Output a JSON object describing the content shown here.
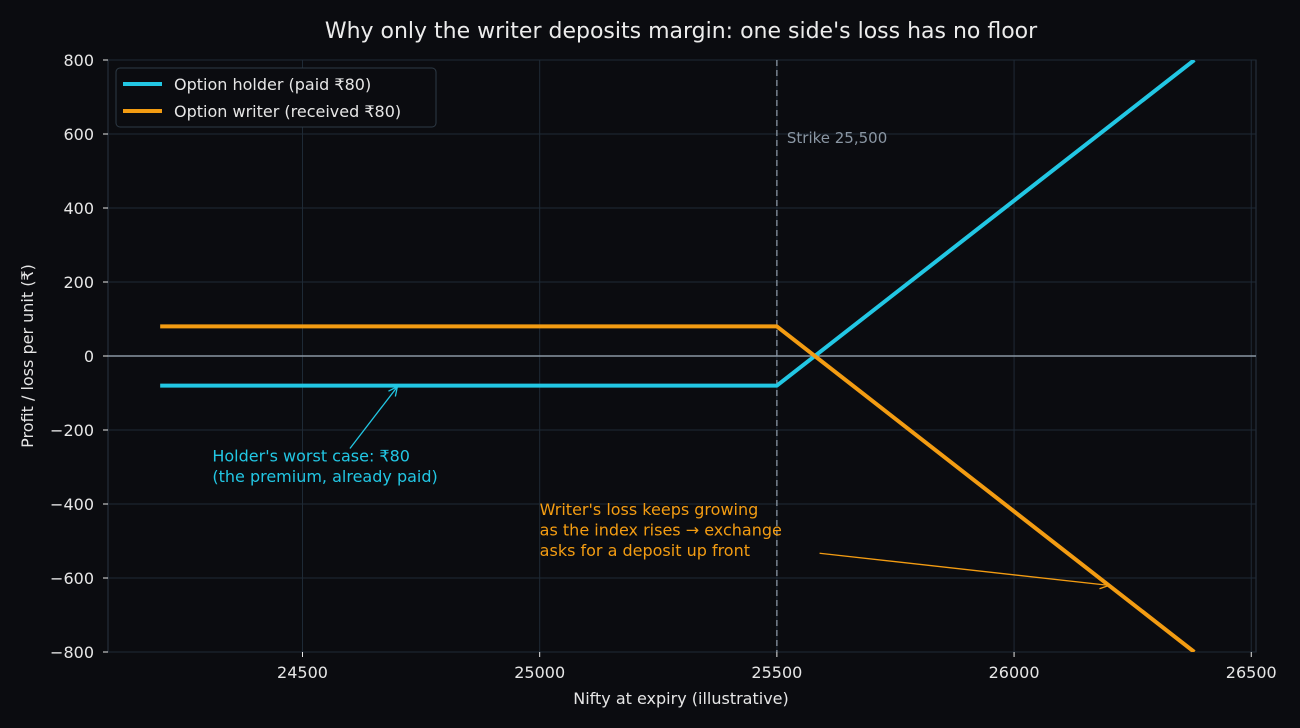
{
  "chart_data": {
    "type": "line",
    "title": "Why only the writer deposits margin: one side's loss has no floor",
    "xlabel": "Nifty at expiry (illustrative)",
    "ylabel": "Profit / loss per unit (₹)",
    "xlim": [
      24090,
      26510
    ],
    "ylim": [
      -800,
      800
    ],
    "x_ticks": [
      24500,
      25000,
      25500,
      26000,
      26500
    ],
    "y_ticks": [
      800,
      600,
      400,
      200,
      0,
      -200,
      -400,
      -600,
      -800
    ],
    "y_tick_labels": [
      "800",
      "600",
      "400",
      "200",
      "0",
      "−200",
      "−400",
      "−600",
      "−800"
    ],
    "grid": true,
    "legend_position": "top-left",
    "strike": {
      "x": 25500,
      "label": "Strike 25,500"
    },
    "series": [
      {
        "name": "Option holder (paid ₹80)",
        "color": "#22c7e4",
        "x": [
          24200,
          25500,
          26380
        ],
        "y": [
          -80,
          -80,
          800
        ]
      },
      {
        "name": "Option writer (received ₹80)",
        "color": "#f39c12",
        "x": [
          24200,
          25500,
          26380
        ],
        "y": [
          80,
          80,
          -800
        ]
      }
    ],
    "annotations": [
      {
        "lines": [
          "Holder's worst case: ₹80",
          "(the premium, already paid)"
        ],
        "color": "#22c7e4",
        "text_x": 24310,
        "text_y": -285,
        "arrow_from": [
          24600,
          -250
        ],
        "arrow_to": [
          24700,
          -83
        ]
      },
      {
        "lines": [
          "Writer's loss keeps growing",
          "as the index rises → exchange",
          "asks for a deposit up front"
        ],
        "color": "#f39c12",
        "text_x": 25000,
        "text_y": -430,
        "arrow_from": [
          25590,
          -533
        ],
        "arrow_to": [
          26200,
          -620
        ]
      }
    ]
  }
}
